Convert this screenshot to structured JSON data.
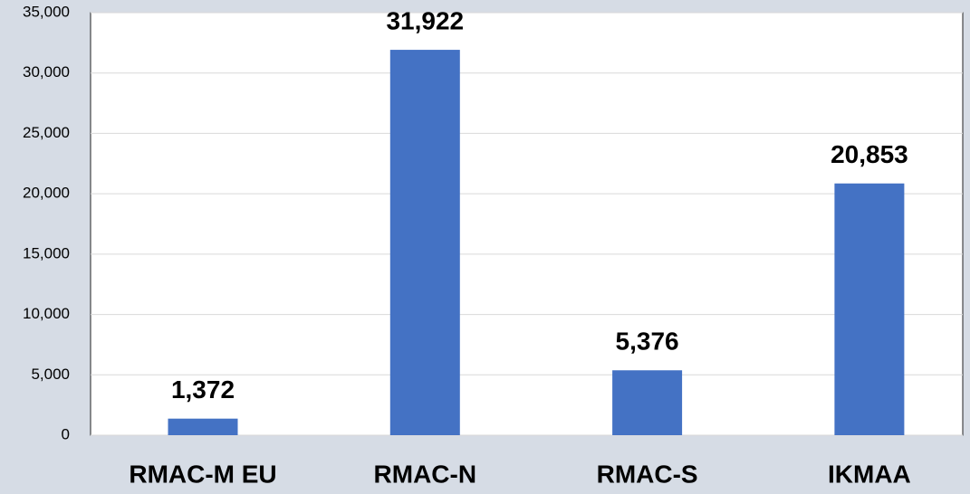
{
  "chart_data": {
    "type": "bar",
    "categories": [
      "RMAC-M EU",
      "RMAC-N",
      "RMAC-S",
      "IKMAA"
    ],
    "values": [
      1372,
      31922,
      5376,
      20853
    ],
    "value_labels": [
      "1,372",
      "31,922",
      "5,376",
      "20,853"
    ],
    "color": "#4472c4",
    "ylim": [
      0,
      35000
    ],
    "yticks": [
      0,
      {
        "value": 5000,
        "label": "5,000"
      },
      {
        "value": 10000,
        "label": "10,000"
      },
      {
        "value": 15000,
        "label": "15,000"
      },
      {
        "value": 20000,
        "label": "20,000"
      },
      {
        "value": 25000,
        "label": "25,000"
      },
      {
        "value": 30000,
        "label": "30,000"
      },
      {
        "value": 35000,
        "label": "35,000"
      }
    ],
    "grid": true
  }
}
